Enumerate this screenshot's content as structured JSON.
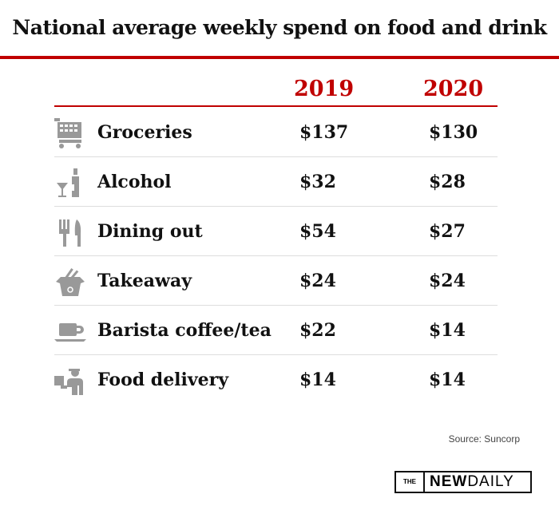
{
  "title": "National average weekly spend on food and drink",
  "accent_color": "#c00000",
  "icon_color": "#999999",
  "chart_data": {
    "type": "table",
    "title": "National average weekly spend on food and drink",
    "columns": [
      "2019",
      "2020"
    ],
    "rows": [
      {
        "category": "Groceries",
        "icon": "shopping-cart-icon",
        "values": [
          "$137",
          "$130"
        ]
      },
      {
        "category": "Alcohol",
        "icon": "wine-bottle-icon",
        "values": [
          "$32",
          "$28"
        ]
      },
      {
        "category": "Dining out",
        "icon": "fork-knife-icon",
        "values": [
          "$54",
          "$27"
        ]
      },
      {
        "category": "Takeaway",
        "icon": "takeaway-box-icon",
        "values": [
          "$24",
          "$24"
        ]
      },
      {
        "category": "Barista coffee/tea",
        "icon": "coffee-cup-icon",
        "values": [
          "$22",
          "$14"
        ]
      },
      {
        "category": "Food delivery",
        "icon": "delivery-person-icon",
        "values": [
          "$14",
          "$14"
        ]
      }
    ]
  },
  "source": "Source: Suncorp",
  "logo": {
    "the": "THE",
    "new": "NEW",
    "daily": "DAILY"
  }
}
